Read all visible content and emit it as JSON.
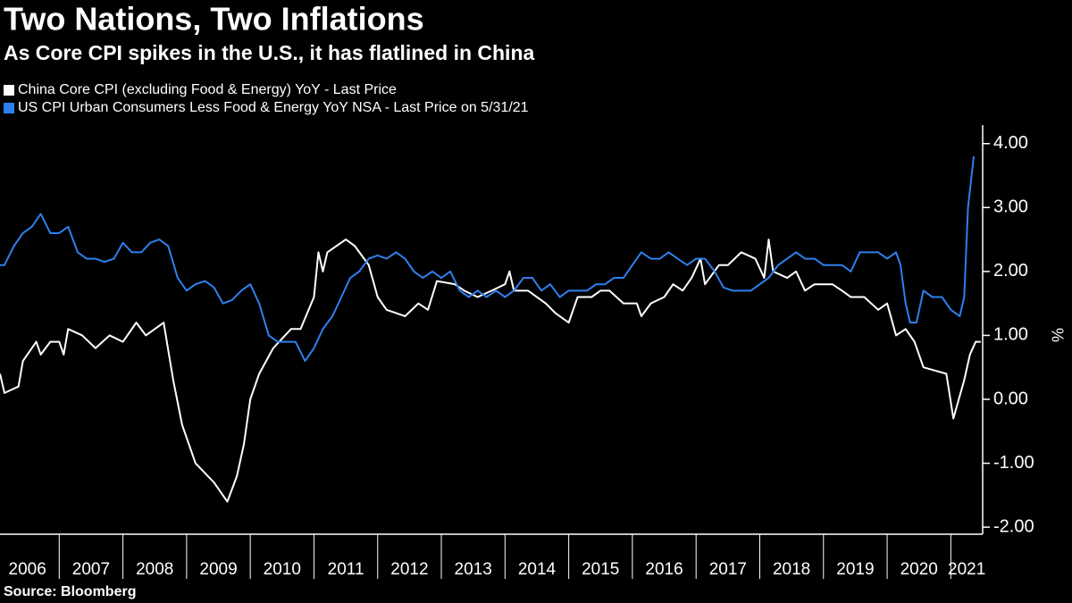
{
  "chart_data": {
    "type": "line",
    "title": "Two Nations, Two Inflations",
    "subtitle": "As Core CPI spikes in the U.S., it has flatlined in China",
    "source": "Source: Bloomberg",
    "y_label": "%",
    "ylim": [
      -2.11,
      4.29
    ],
    "yticks": [
      {
        "value": 4,
        "label": "4.00"
      },
      {
        "value": 3,
        "label": "3.00"
      },
      {
        "value": 2,
        "label": "2.00"
      },
      {
        "value": 1,
        "label": "1.00"
      },
      {
        "value": 0,
        "label": "0.00"
      },
      {
        "value": -1,
        "label": "-1.00"
      },
      {
        "value": -2,
        "label": "-2.00"
      }
    ],
    "xlim": [
      2006.07,
      2021.5
    ],
    "xticks": [
      {
        "value": 2006,
        "label": "2006"
      },
      {
        "value": 2007,
        "label": "2007"
      },
      {
        "value": 2008,
        "label": "2008"
      },
      {
        "value": 2009,
        "label": "2009"
      },
      {
        "value": 2010,
        "label": "2010"
      },
      {
        "value": 2011,
        "label": "2011"
      },
      {
        "value": 2012,
        "label": "2012"
      },
      {
        "value": 2013,
        "label": "2013"
      },
      {
        "value": 2014,
        "label": "2014"
      },
      {
        "value": 2015,
        "label": "2015"
      },
      {
        "value": 2016,
        "label": "2016"
      },
      {
        "value": 2017,
        "label": "2017"
      },
      {
        "value": 2018,
        "label": "2018"
      },
      {
        "value": 2019,
        "label": "2019"
      },
      {
        "value": 2020,
        "label": "2020"
      },
      {
        "value": 2021,
        "label": "2021"
      }
    ],
    "series": [
      {
        "name": "China Core CPI (excluding Food & Energy) YoY - Last Price",
        "color": "#ffffff",
        "x": [
          2006.07,
          2006.14,
          2006.36,
          2006.43,
          2006.64,
          2006.71,
          2006.86,
          2007.0,
          2007.07,
          2007.14,
          2007.36,
          2007.57,
          2007.79,
          2008.0,
          2008.21,
          2008.36,
          2008.64,
          2008.79,
          2008.93,
          2009.14,
          2009.43,
          2009.64,
          2009.79,
          2009.9,
          2010.0,
          2010.14,
          2010.36,
          2010.64,
          2010.79,
          2011.0,
          2011.07,
          2011.14,
          2011.21,
          2011.5,
          2011.64,
          2011.86,
          2012.0,
          2012.14,
          2012.43,
          2012.64,
          2012.79,
          2012.93,
          2013.21,
          2013.36,
          2013.57,
          2013.79,
          2014.0,
          2014.07,
          2014.14,
          2014.36,
          2014.64,
          2014.79,
          2015.0,
          2015.14,
          2015.36,
          2015.5,
          2015.64,
          2015.86,
          2016.07,
          2016.14,
          2016.29,
          2016.5,
          2016.64,
          2016.79,
          2016.93,
          2017.07,
          2017.14,
          2017.36,
          2017.5,
          2017.71,
          2017.93,
          2018.07,
          2018.14,
          2018.21,
          2018.43,
          2018.57,
          2018.71,
          2018.86,
          2019.0,
          2019.14,
          2019.29,
          2019.43,
          2019.64,
          2019.86,
          2020.0,
          2020.14,
          2020.29,
          2020.43,
          2020.57,
          2020.93,
          2021.04,
          2021.21,
          2021.3,
          2021.39,
          2021.47
        ],
        "values": [
          0.4,
          0.1,
          0.2,
          0.6,
          0.9,
          0.7,
          0.9,
          0.9,
          0.7,
          1.1,
          1.0,
          0.8,
          1.0,
          0.9,
          1.2,
          1.0,
          1.2,
          0.3,
          -0.4,
          -1.0,
          -1.3,
          -1.6,
          -1.2,
          -0.7,
          0.0,
          0.4,
          0.8,
          1.1,
          1.1,
          1.6,
          2.3,
          2.0,
          2.3,
          2.5,
          2.4,
          2.1,
          1.6,
          1.4,
          1.3,
          1.5,
          1.4,
          1.85,
          1.8,
          1.7,
          1.6,
          1.7,
          1.8,
          2.0,
          1.7,
          1.7,
          1.5,
          1.35,
          1.2,
          1.6,
          1.6,
          1.7,
          1.7,
          1.5,
          1.5,
          1.3,
          1.5,
          1.6,
          1.8,
          1.7,
          1.9,
          2.2,
          1.8,
          2.1,
          2.1,
          2.3,
          2.2,
          1.9,
          2.5,
          2.0,
          1.9,
          2.0,
          1.7,
          1.8,
          1.8,
          1.8,
          1.7,
          1.6,
          1.6,
          1.4,
          1.5,
          1.0,
          1.1,
          0.9,
          0.5,
          0.4,
          -0.3,
          0.3,
          0.7,
          0.9,
          0.9
        ]
      },
      {
        "name": "US CPI Urban Consumers Less Food & Energy YoY NSA - Last Price on 5/31/21",
        "color": "#2f80ed",
        "x": [
          2006.07,
          2006.14,
          2006.29,
          2006.43,
          2006.57,
          2006.71,
          2006.86,
          2007.0,
          2007.14,
          2007.29,
          2007.43,
          2007.57,
          2007.71,
          2007.86,
          2008.0,
          2008.14,
          2008.29,
          2008.43,
          2008.57,
          2008.71,
          2008.86,
          2009.0,
          2009.14,
          2009.29,
          2009.43,
          2009.57,
          2009.71,
          2009.86,
          2010.0,
          2010.14,
          2010.29,
          2010.43,
          2010.57,
          2010.71,
          2010.86,
          2011.0,
          2011.14,
          2011.29,
          2011.43,
          2011.57,
          2011.71,
          2011.86,
          2012.0,
          2012.14,
          2012.29,
          2012.43,
          2012.57,
          2012.71,
          2012.86,
          2013.0,
          2013.14,
          2013.29,
          2013.43,
          2013.57,
          2013.71,
          2013.86,
          2014.0,
          2014.14,
          2014.29,
          2014.43,
          2014.57,
          2014.71,
          2014.86,
          2015.0,
          2015.14,
          2015.29,
          2015.43,
          2015.57,
          2015.71,
          2015.86,
          2016.0,
          2016.14,
          2016.29,
          2016.43,
          2016.57,
          2016.71,
          2016.86,
          2017.0,
          2017.14,
          2017.29,
          2017.43,
          2017.57,
          2017.71,
          2017.86,
          2018.0,
          2018.14,
          2018.29,
          2018.43,
          2018.57,
          2018.71,
          2018.86,
          2019.0,
          2019.14,
          2019.29,
          2019.43,
          2019.57,
          2019.71,
          2019.86,
          2020.0,
          2020.14,
          2020.21,
          2020.29,
          2020.36,
          2020.46,
          2020.57,
          2020.71,
          2020.86,
          2021.0,
          2021.14,
          2021.21,
          2021.27,
          2021.36
        ],
        "values": [
          2.1,
          2.1,
          2.4,
          2.6,
          2.7,
          2.9,
          2.6,
          2.6,
          2.7,
          2.3,
          2.2,
          2.2,
          2.15,
          2.2,
          2.45,
          2.3,
          2.3,
          2.45,
          2.5,
          2.4,
          1.9,
          1.7,
          1.8,
          1.85,
          1.75,
          1.5,
          1.55,
          1.7,
          1.8,
          1.5,
          1.0,
          0.9,
          0.9,
          0.9,
          0.6,
          0.8,
          1.1,
          1.3,
          1.6,
          1.9,
          2.0,
          2.2,
          2.25,
          2.2,
          2.3,
          2.2,
          2.0,
          1.9,
          2.0,
          1.9,
          2.0,
          1.7,
          1.6,
          1.7,
          1.6,
          1.7,
          1.6,
          1.7,
          1.9,
          1.9,
          1.7,
          1.8,
          1.6,
          1.7,
          1.7,
          1.7,
          1.8,
          1.8,
          1.9,
          1.9,
          2.1,
          2.3,
          2.2,
          2.2,
          2.3,
          2.2,
          2.1,
          2.2,
          2.2,
          2.0,
          1.75,
          1.7,
          1.7,
          1.7,
          1.8,
          1.9,
          2.1,
          2.2,
          2.3,
          2.2,
          2.2,
          2.1,
          2.1,
          2.1,
          2.0,
          2.3,
          2.3,
          2.3,
          2.2,
          2.3,
          2.1,
          1.5,
          1.2,
          1.2,
          1.7,
          1.6,
          1.6,
          1.4,
          1.3,
          1.6,
          3.0,
          3.8
        ]
      }
    ]
  }
}
